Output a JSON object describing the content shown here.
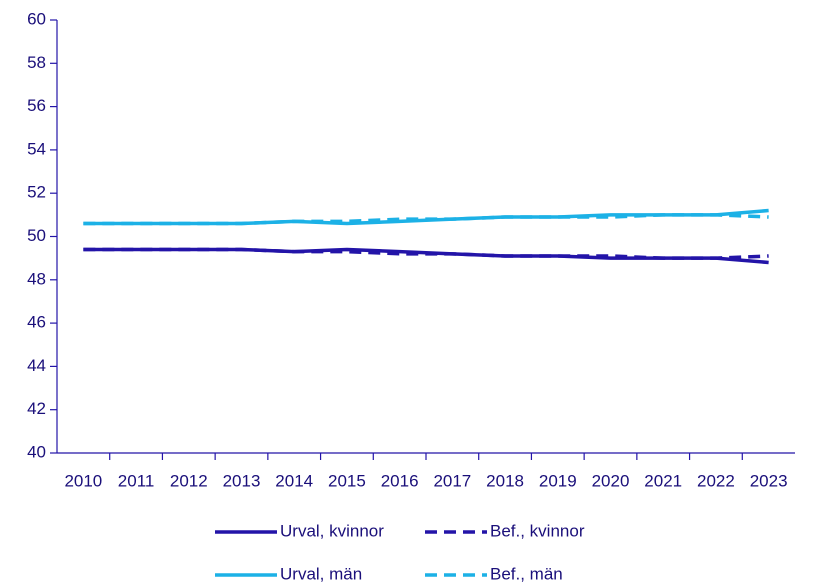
{
  "chart_data": {
    "type": "line",
    "categories": [
      "2010",
      "2011",
      "2012",
      "2013",
      "2014",
      "2015",
      "2016",
      "2017",
      "2018",
      "2019",
      "2020",
      "2021",
      "2022",
      "2023"
    ],
    "series": [
      {
        "name": "Urval, kvinnor",
        "color": "#2314a8",
        "dash": false,
        "values": [
          49.4,
          49.4,
          49.4,
          49.4,
          49.3,
          49.4,
          49.3,
          49.2,
          49.1,
          49.1,
          49.0,
          49.0,
          49.0,
          48.8
        ]
      },
      {
        "name": "Bef., kvinnor",
        "color": "#2314a8",
        "dash": true,
        "values": [
          49.4,
          49.4,
          49.4,
          49.4,
          49.3,
          49.3,
          49.2,
          49.2,
          49.1,
          49.1,
          49.1,
          49.0,
          49.0,
          49.1
        ]
      },
      {
        "name": "Urval, män",
        "color": "#1cb1e6",
        "dash": false,
        "values": [
          50.6,
          50.6,
          50.6,
          50.6,
          50.7,
          50.6,
          50.7,
          50.8,
          50.9,
          50.9,
          51.0,
          51.0,
          51.0,
          51.2
        ]
      },
      {
        "name": "Bef., män",
        "color": "#1cb1e6",
        "dash": true,
        "values": [
          50.6,
          50.6,
          50.6,
          50.6,
          50.7,
          50.7,
          50.8,
          50.8,
          50.9,
          50.9,
          50.9,
          51.0,
          51.0,
          50.9
        ]
      }
    ],
    "ylim": [
      40,
      60
    ],
    "yticks": [
      40,
      42,
      44,
      46,
      48,
      50,
      52,
      54,
      56,
      58,
      60
    ],
    "grid": false
  }
}
